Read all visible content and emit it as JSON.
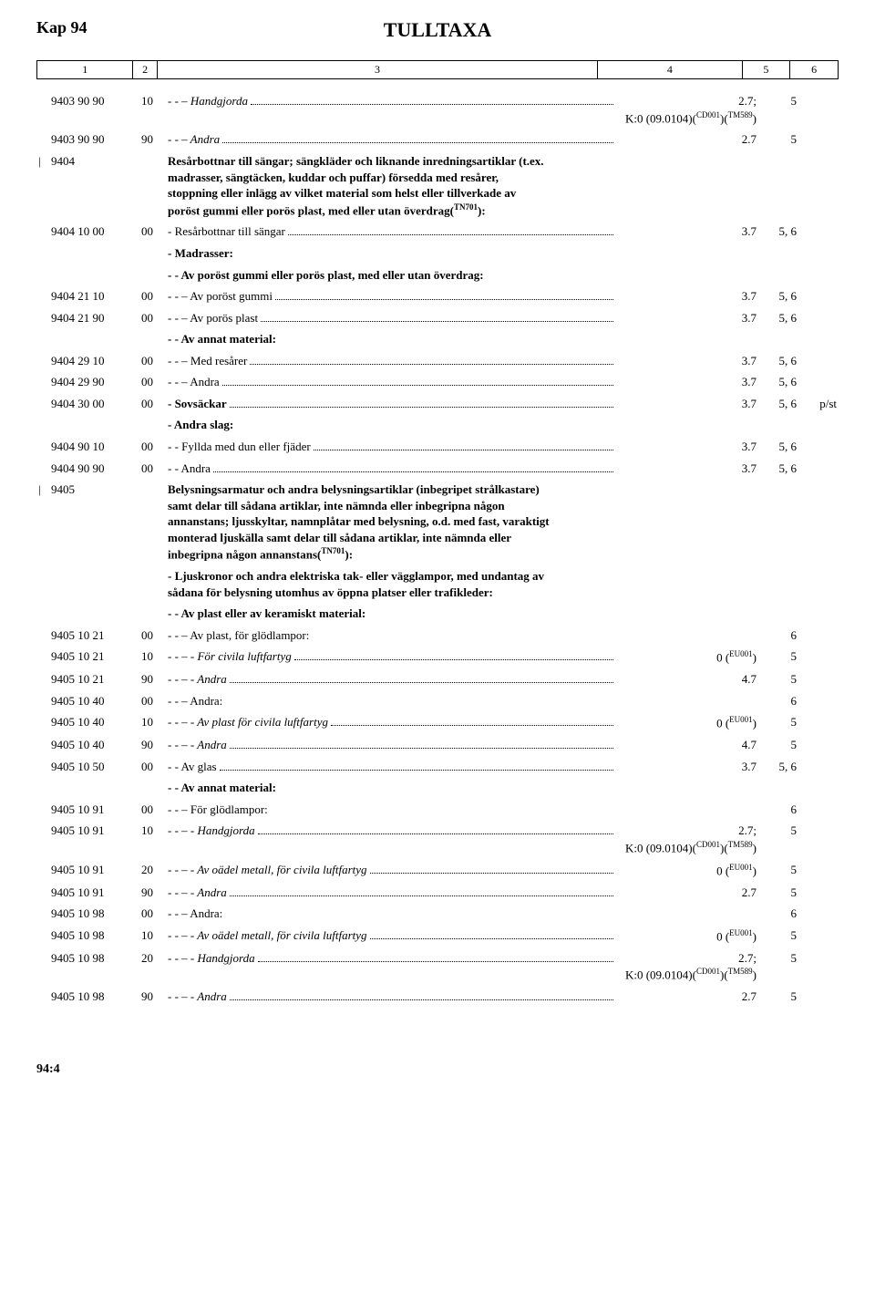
{
  "header": {
    "left": "Kap 94",
    "center": "TULLTAXA"
  },
  "colheaders": {
    "c1": "1",
    "c2": "2",
    "c3": "3",
    "c4": "4",
    "c5": "5",
    "c6": "6"
  },
  "colwidths": {
    "c1": "12%",
    "c2": "3%",
    "c3": "55%",
    "c4": "18%",
    "c5": "6%",
    "c6": "6%"
  },
  "footer": "94:4",
  "rows": [
    {
      "pipe": "",
      "code": "9403 90 90",
      "sub": "10",
      "desc": "-  -  – Handgjorda",
      "italic": true,
      "leader": true,
      "col4": "2.7;<br>K:0 (09.0104)(<sup>CD001</sup>)(<sup>TM589</sup>)",
      "col5": "5",
      "col6": ""
    },
    {
      "pipe": "",
      "code": "9403 90 90",
      "sub": "90",
      "desc": "-  -  – Andra",
      "italic": true,
      "leader": true,
      "col4": "2.7",
      "col5": "5",
      "col6": ""
    },
    {
      "pipe": "|",
      "code": "9404",
      "sub": "",
      "desc": "Resårbottnar till sängar; sängkläder och liknande inredningsartiklar (t.ex. madrasser, sängtäcken, kuddar och puffar) försedda med resårer, stoppning eller inlägg av vilket material som helst eller tillverkade av poröst gummi eller porös plast, med eller utan överdrag(<sup>TN701</sup>):",
      "bold": true,
      "leader": false,
      "col4": "",
      "col5": "",
      "col6": ""
    },
    {
      "pipe": "",
      "code": "9404 10 00",
      "sub": "00",
      "desc": "-  Resårbottnar till sängar",
      "leader": true,
      "col4": "3.7",
      "col5": "5, 6",
      "col6": ""
    },
    {
      "pipe": "",
      "code": "",
      "sub": "",
      "desc": "-  Madrasser:",
      "bold": true,
      "leader": false,
      "col4": "",
      "col5": "",
      "col6": ""
    },
    {
      "pipe": "",
      "code": "",
      "sub": "",
      "desc": "-  -  Av poröst gummi eller porös plast, med eller utan överdrag:",
      "bold": true,
      "leader": false,
      "col4": "",
      "col5": "",
      "col6": ""
    },
    {
      "pipe": "",
      "code": "9404 21 10",
      "sub": "00",
      "desc": "-  -  – Av poröst gummi",
      "leader": true,
      "col4": "3.7",
      "col5": "5, 6",
      "col6": ""
    },
    {
      "pipe": "",
      "code": "9404 21 90",
      "sub": "00",
      "desc": "-  -  – Av porös plast",
      "leader": true,
      "col4": "3.7",
      "col5": "5, 6",
      "col6": ""
    },
    {
      "pipe": "",
      "code": "",
      "sub": "",
      "desc": "-  -  Av annat material:",
      "bold": true,
      "leader": false,
      "col4": "",
      "col5": "",
      "col6": ""
    },
    {
      "pipe": "",
      "code": "9404 29 10",
      "sub": "00",
      "desc": "-  -  – Med resårer",
      "leader": true,
      "col4": "3.7",
      "col5": "5, 6",
      "col6": ""
    },
    {
      "pipe": "",
      "code": "9404 29 90",
      "sub": "00",
      "desc": "-  -  – Andra",
      "leader": true,
      "col4": "3.7",
      "col5": "5, 6",
      "col6": ""
    },
    {
      "pipe": "",
      "code": "9404 30 00",
      "sub": "00",
      "desc": "-  Sovsäckar",
      "bold": true,
      "leader": true,
      "col4": "3.7",
      "col5": "5, 6",
      "col6": "p/st"
    },
    {
      "pipe": "",
      "code": "",
      "sub": "",
      "desc": "-  Andra slag:",
      "bold": true,
      "leader": false,
      "col4": "",
      "col5": "",
      "col6": ""
    },
    {
      "pipe": "",
      "code": "9404 90 10",
      "sub": "00",
      "desc": "-  -  Fyllda med dun eller fjäder",
      "leader": true,
      "col4": "3.7",
      "col5": "5, 6",
      "col6": ""
    },
    {
      "pipe": "",
      "code": "9404 90 90",
      "sub": "00",
      "desc": "-  -  Andra",
      "leader": true,
      "col4": "3.7",
      "col5": "5, 6",
      "col6": ""
    },
    {
      "pipe": "|",
      "code": "9405",
      "sub": "",
      "desc": "Belysningsarmatur och andra belysningsartiklar (inbegripet strålkastare) samt delar till sådana artiklar, inte nämnda eller inbegripna någon annanstans; ljusskyltar, namnplåtar med belysning, o.d. med fast, varaktigt monterad ljuskälla samt delar till sådana artiklar, inte nämnda eller inbegripna någon annanstans(<sup>TN701</sup>):",
      "bold": true,
      "leader": false,
      "col4": "",
      "col5": "",
      "col6": ""
    },
    {
      "pipe": "",
      "code": "",
      "sub": "",
      "desc": "-  Ljuskronor och andra elektriska tak- eller vägglampor, med undantag av sådana för belysning utomhus av öppna platser eller trafikleder:",
      "bold": true,
      "leader": false,
      "col4": "",
      "col5": "",
      "col6": ""
    },
    {
      "pipe": "",
      "code": "",
      "sub": "",
      "desc": "-  -  Av plast eller av keramiskt material:",
      "bold": true,
      "leader": false,
      "col4": "",
      "col5": "",
      "col6": ""
    },
    {
      "pipe": "",
      "code": "9405 10 21",
      "sub": "00",
      "desc": "-  -  – Av plast, för glödlampor:",
      "leader": false,
      "col4": "",
      "col5": "6",
      "col6": ""
    },
    {
      "pipe": "",
      "code": "9405 10 21",
      "sub": "10",
      "desc": "-  -  – -  För civila luftfartyg",
      "italic": true,
      "leader": true,
      "col4": "0 (<sup>EU001</sup>)",
      "col5": "5",
      "col6": ""
    },
    {
      "pipe": "",
      "code": "9405 10 21",
      "sub": "90",
      "desc": "-  -  – -  Andra",
      "italic": true,
      "leader": true,
      "col4": "4.7",
      "col5": "5",
      "col6": ""
    },
    {
      "pipe": "",
      "code": "9405 10 40",
      "sub": "00",
      "desc": "-  -  – Andra:",
      "leader": false,
      "col4": "",
      "col5": "6",
      "col6": ""
    },
    {
      "pipe": "",
      "code": "9405 10 40",
      "sub": "10",
      "desc": "-  -  – -  Av plast för civila luftfartyg",
      "italic": true,
      "leader": true,
      "col4": "0 (<sup>EU001</sup>)",
      "col5": "5",
      "col6": ""
    },
    {
      "pipe": "",
      "code": "9405 10 40",
      "sub": "90",
      "desc": "-  -  – -  Andra",
      "italic": true,
      "leader": true,
      "col4": "4.7",
      "col5": "5",
      "col6": ""
    },
    {
      "pipe": "",
      "code": "9405 10 50",
      "sub": "00",
      "desc": "-  -  Av glas",
      "leader": true,
      "col4": "3.7",
      "col5": "5, 6",
      "col6": ""
    },
    {
      "pipe": "",
      "code": "",
      "sub": "",
      "desc": "-  -  Av annat material:",
      "bold": true,
      "leader": false,
      "col4": "",
      "col5": "",
      "col6": ""
    },
    {
      "pipe": "",
      "code": "9405 10 91",
      "sub": "00",
      "desc": "-  -  – För glödlampor:",
      "leader": false,
      "col4": "",
      "col5": "6",
      "col6": ""
    },
    {
      "pipe": "",
      "code": "9405 10 91",
      "sub": "10",
      "desc": "-  -  – -  Handgjorda",
      "italic": true,
      "leader": true,
      "col4": "2.7;<br>K:0 (09.0104)(<sup>CD001</sup>)(<sup>TM589</sup>)",
      "col5": "5",
      "col6": ""
    },
    {
      "pipe": "",
      "code": "9405 10 91",
      "sub": "20",
      "desc": "-  -  – -  Av oädel metall, för civila luftfartyg",
      "italic": true,
      "leader": true,
      "col4": "0 (<sup>EU001</sup>)",
      "col5": "5",
      "col6": ""
    },
    {
      "pipe": "",
      "code": "9405 10 91",
      "sub": "90",
      "desc": "-  -  – -  Andra",
      "italic": true,
      "leader": true,
      "col4": "2.7",
      "col5": "5",
      "col6": ""
    },
    {
      "pipe": "",
      "code": "9405 10 98",
      "sub": "00",
      "desc": "-  -  – Andra:",
      "leader": false,
      "col4": "",
      "col5": "6",
      "col6": ""
    },
    {
      "pipe": "",
      "code": "9405 10 98",
      "sub": "10",
      "desc": "-  -  – -  Av oädel metall, för civila luftfartyg",
      "italic": true,
      "leader": true,
      "col4": "0 (<sup>EU001</sup>)",
      "col5": "5",
      "col6": ""
    },
    {
      "pipe": "",
      "code": "9405 10 98",
      "sub": "20",
      "desc": "-  -  – -  Handgjorda",
      "italic": true,
      "leader": true,
      "col4": "2.7;<br>K:0 (09.0104)(<sup>CD001</sup>)(<sup>TM589</sup>)",
      "col5": "5",
      "col6": ""
    },
    {
      "pipe": "",
      "code": "9405 10 98",
      "sub": "90",
      "desc": "-  -  – -  Andra",
      "italic": true,
      "leader": true,
      "col4": "2.7",
      "col5": "5",
      "col6": ""
    }
  ]
}
